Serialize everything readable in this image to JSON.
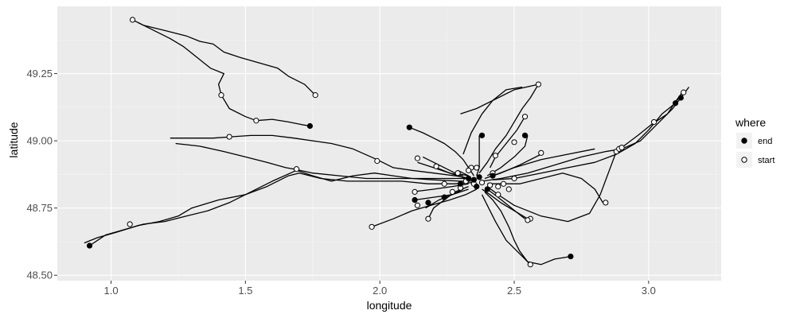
{
  "chart_data": {
    "type": "scatter",
    "title": "",
    "xlabel": "longitude",
    "ylabel": "latitude",
    "xlim": [
      0.8,
      3.27
    ],
    "ylim": [
      48.48,
      49.5
    ],
    "x_ticks": [
      {
        "value": 1.0,
        "label": "1.0"
      },
      {
        "value": 1.5,
        "label": "1.5"
      },
      {
        "value": 2.0,
        "label": "2.0"
      },
      {
        "value": 2.5,
        "label": "2.5"
      },
      {
        "value": 3.0,
        "label": "3.0"
      }
    ],
    "y_ticks": [
      {
        "value": 48.5,
        "label": "48.50"
      },
      {
        "value": 48.75,
        "label": "48.75"
      },
      {
        "value": 49.0,
        "label": "49.00"
      },
      {
        "value": 49.25,
        "label": "49.25"
      }
    ],
    "grid": true,
    "panel_background": "#ebebeb",
    "legend": {
      "title": "where",
      "position": "right",
      "entries": [
        {
          "label": "end",
          "marker": "filled-circle",
          "fill": "#000000"
        },
        {
          "label": "start",
          "marker": "open-circle",
          "fill": "#ffffff"
        }
      ]
    },
    "tracks": [
      [
        [
          1.08,
          49.45
        ],
        [
          1.12,
          49.43
        ],
        [
          1.2,
          49.41
        ],
        [
          1.28,
          49.39
        ],
        [
          1.33,
          49.37
        ],
        [
          1.38,
          49.36
        ],
        [
          1.42,
          49.33
        ],
        [
          1.48,
          49.31
        ],
        [
          1.55,
          49.29
        ],
        [
          1.62,
          49.27
        ],
        [
          1.66,
          49.24
        ],
        [
          1.72,
          49.21
        ],
        [
          1.76,
          49.17
        ]
      ],
      [
        [
          1.1,
          49.44
        ],
        [
          1.16,
          49.41
        ],
        [
          1.22,
          49.38
        ],
        [
          1.27,
          49.35
        ],
        [
          1.32,
          49.31
        ],
        [
          1.37,
          49.27
        ],
        [
          1.42,
          49.25
        ],
        [
          1.4,
          49.21
        ],
        [
          1.41,
          49.17
        ],
        [
          1.44,
          49.12
        ],
        [
          1.5,
          49.09
        ],
        [
          1.54,
          49.075
        ],
        [
          1.6,
          49.08
        ],
        [
          1.66,
          49.07
        ],
        [
          1.71,
          49.06
        ],
        [
          1.74,
          49.055
        ]
      ],
      [
        [
          1.22,
          49.01
        ],
        [
          1.3,
          49.01
        ],
        [
          1.38,
          49.01
        ],
        [
          1.45,
          49.015
        ],
        [
          1.52,
          49.02
        ],
        [
          1.6,
          49.02
        ],
        [
          1.68,
          49.01
        ],
        [
          1.75,
          49.0
        ],
        [
          1.82,
          48.99
        ],
        [
          1.9,
          48.97
        ],
        [
          1.99,
          48.93
        ],
        [
          2.05,
          48.9
        ],
        [
          2.12,
          48.89
        ],
        [
          2.2,
          48.88
        ],
        [
          2.28,
          48.87
        ],
        [
          2.34,
          48.86
        ]
      ],
      [
        [
          1.24,
          48.99
        ],
        [
          1.33,
          48.98
        ],
        [
          1.42,
          48.96
        ],
        [
          1.5,
          48.94
        ],
        [
          1.58,
          48.92
        ],
        [
          1.65,
          48.9
        ],
        [
          1.68,
          48.895
        ],
        [
          1.75,
          48.88
        ],
        [
          1.85,
          48.87
        ],
        [
          1.95,
          48.86
        ],
        [
          2.05,
          48.86
        ],
        [
          2.15,
          48.86
        ],
        [
          2.25,
          48.86
        ],
        [
          2.34,
          48.86
        ]
      ],
      [
        [
          0.92,
          48.61
        ],
        [
          0.98,
          48.65
        ],
        [
          1.05,
          48.67
        ],
        [
          1.12,
          48.69
        ],
        [
          1.2,
          48.7
        ],
        [
          1.28,
          48.72
        ],
        [
          1.36,
          48.74
        ],
        [
          1.44,
          48.77
        ],
        [
          1.52,
          48.81
        ],
        [
          1.6,
          48.85
        ],
        [
          1.69,
          48.89
        ],
        [
          1.75,
          48.87
        ],
        [
          1.82,
          48.85
        ],
        [
          1.9,
          48.87
        ],
        [
          1.98,
          48.88
        ],
        [
          2.05,
          48.87
        ],
        [
          2.12,
          48.86
        ],
        [
          2.2,
          48.855
        ],
        [
          2.3,
          48.85
        ],
        [
          2.35,
          48.85
        ]
      ],
      [
        [
          0.9,
          48.62
        ],
        [
          0.95,
          48.64
        ],
        [
          1.02,
          48.66
        ],
        [
          1.1,
          48.685
        ],
        [
          1.18,
          48.7
        ],
        [
          1.25,
          48.72
        ],
        [
          1.3,
          48.75
        ],
        [
          1.4,
          48.78
        ],
        [
          1.5,
          48.8
        ],
        [
          1.58,
          48.83
        ],
        [
          1.66,
          48.87
        ],
        [
          1.7,
          48.88
        ],
        [
          1.78,
          48.86
        ],
        [
          1.88,
          48.85
        ],
        [
          1.98,
          48.85
        ],
        [
          2.08,
          48.85
        ],
        [
          2.18,
          48.84
        ],
        [
          2.28,
          48.84
        ],
        [
          2.35,
          48.845
        ]
      ],
      [
        [
          2.11,
          49.05
        ],
        [
          2.16,
          49.03
        ],
        [
          2.2,
          49.01
        ],
        [
          2.24,
          48.99
        ],
        [
          2.28,
          48.96
        ],
        [
          2.31,
          48.93
        ],
        [
          2.33,
          48.9
        ],
        [
          2.35,
          48.87
        ]
      ],
      [
        [
          2.37,
          49.02
        ],
        [
          2.37,
          48.98
        ],
        [
          2.37,
          48.94
        ],
        [
          2.37,
          48.9
        ],
        [
          2.36,
          48.87
        ]
      ],
      [
        [
          2.31,
          48.95
        ],
        [
          2.34,
          49.03
        ],
        [
          2.38,
          49.1
        ],
        [
          2.42,
          49.15
        ],
        [
          2.47,
          49.19
        ],
        [
          2.53,
          49.2
        ]
      ],
      [
        [
          2.3,
          49.1
        ],
        [
          2.36,
          49.12
        ],
        [
          2.42,
          49.15
        ],
        [
          2.5,
          49.19
        ],
        [
          2.59,
          49.21
        ]
      ],
      [
        [
          2.59,
          49.21
        ],
        [
          2.56,
          49.16
        ],
        [
          2.53,
          49.12
        ],
        [
          2.5,
          49.07
        ],
        [
          2.47,
          49.02
        ],
        [
          2.43,
          48.97
        ],
        [
          2.4,
          48.92
        ],
        [
          2.37,
          48.88
        ]
      ],
      [
        [
          2.54,
          49.09
        ],
        [
          2.51,
          49.04
        ],
        [
          2.47,
          48.99
        ],
        [
          2.43,
          48.94
        ],
        [
          2.41,
          48.9
        ]
      ],
      [
        [
          2.55,
          49.02
        ],
        [
          2.54,
          48.98
        ],
        [
          2.5,
          48.94
        ],
        [
          2.45,
          48.9
        ],
        [
          2.4,
          48.87
        ]
      ],
      [
        [
          2.6,
          48.95
        ],
        [
          2.52,
          48.91
        ],
        [
          2.45,
          48.88
        ],
        [
          2.39,
          48.86
        ]
      ],
      [
        [
          2.8,
          48.97
        ],
        [
          2.7,
          48.95
        ],
        [
          2.6,
          48.93
        ],
        [
          2.5,
          48.9
        ],
        [
          2.42,
          48.87
        ]
      ],
      [
        [
          3.15,
          49.2
        ],
        [
          3.12,
          49.16
        ],
        [
          3.09,
          49.12
        ],
        [
          3.05,
          49.08
        ],
        [
          3.02,
          49.05
        ],
        [
          2.97,
          49.0
        ],
        [
          2.9,
          48.97
        ],
        [
          2.84,
          48.96
        ],
        [
          2.75,
          48.94
        ],
        [
          2.65,
          48.91
        ],
        [
          2.55,
          48.88
        ],
        [
          2.45,
          48.86
        ],
        [
          2.38,
          48.85
        ]
      ],
      [
        [
          3.13,
          49.19
        ],
        [
          3.1,
          49.14
        ],
        [
          3.05,
          49.1
        ],
        [
          3.0,
          49.04
        ],
        [
          2.95,
          48.99
        ],
        [
          2.88,
          48.95
        ],
        [
          2.8,
          48.92
        ],
        [
          2.7,
          48.9
        ],
        [
          2.6,
          48.88
        ],
        [
          2.5,
          48.86
        ],
        [
          2.42,
          48.855
        ]
      ],
      [
        [
          3.11,
          49.16
        ],
        [
          3.07,
          49.1
        ],
        [
          3.01,
          49.06
        ],
        [
          2.96,
          49.02
        ],
        [
          2.88,
          48.96
        ],
        [
          2.85,
          48.88
        ],
        [
          2.82,
          48.8
        ],
        [
          2.78,
          48.73
        ],
        [
          2.7,
          48.7
        ],
        [
          2.6,
          48.72
        ],
        [
          2.5,
          48.76
        ],
        [
          2.44,
          48.8
        ],
        [
          2.4,
          48.83
        ]
      ],
      [
        [
          2.83,
          48.77
        ],
        [
          2.8,
          48.82
        ],
        [
          2.75,
          48.86
        ],
        [
          2.68,
          48.88
        ],
        [
          2.6,
          48.86
        ],
        [
          2.52,
          48.84
        ],
        [
          2.45,
          48.84
        ],
        [
          2.4,
          48.84
        ]
      ],
      [
        [
          2.71,
          48.57
        ],
        [
          2.65,
          48.56
        ],
        [
          2.6,
          48.54
        ],
        [
          2.55,
          48.55
        ],
        [
          2.52,
          48.59
        ],
        [
          2.5,
          48.63
        ],
        [
          2.48,
          48.68
        ],
        [
          2.45,
          48.74
        ],
        [
          2.42,
          48.78
        ],
        [
          2.39,
          48.81
        ]
      ],
      [
        [
          2.56,
          48.54
        ],
        [
          2.52,
          48.58
        ],
        [
          2.47,
          48.63
        ],
        [
          2.43,
          48.7
        ],
        [
          2.4,
          48.76
        ],
        [
          2.38,
          48.8
        ]
      ],
      [
        [
          2.55,
          48.71
        ],
        [
          2.5,
          48.74
        ],
        [
          2.45,
          48.77
        ],
        [
          2.41,
          48.8
        ],
        [
          2.38,
          48.82
        ]
      ],
      [
        [
          2.54,
          48.71
        ],
        [
          2.49,
          48.75
        ],
        [
          2.44,
          48.79
        ],
        [
          2.4,
          48.82
        ]
      ],
      [
        [
          1.97,
          48.68
        ],
        [
          2.05,
          48.71
        ],
        [
          2.12,
          48.74
        ],
        [
          2.19,
          48.76
        ],
        [
          2.26,
          48.78
        ],
        [
          2.32,
          48.8
        ],
        [
          2.36,
          48.82
        ]
      ],
      [
        [
          2.13,
          48.78
        ],
        [
          2.2,
          48.79
        ],
        [
          2.27,
          48.8
        ],
        [
          2.33,
          48.82
        ]
      ],
      [
        [
          2.18,
          48.71
        ],
        [
          2.2,
          48.75
        ],
        [
          2.24,
          48.78
        ],
        [
          2.28,
          48.81
        ],
        [
          2.33,
          48.83
        ]
      ],
      [
        [
          2.17,
          48.75
        ],
        [
          2.22,
          48.78
        ],
        [
          2.27,
          48.8
        ],
        [
          2.31,
          48.82
        ]
      ],
      [
        [
          2.12,
          48.81
        ],
        [
          2.2,
          48.82
        ],
        [
          2.27,
          48.83
        ],
        [
          2.33,
          48.84
        ]
      ],
      [
        [
          2.14,
          48.92
        ],
        [
          2.2,
          48.9
        ],
        [
          2.26,
          48.88
        ],
        [
          2.32,
          48.86
        ]
      ],
      [
        [
          2.16,
          48.94
        ],
        [
          2.22,
          48.91
        ],
        [
          2.28,
          48.88
        ],
        [
          2.33,
          48.87
        ]
      ],
      [
        [
          2.21,
          48.9
        ],
        [
          2.26,
          48.88
        ],
        [
          2.31,
          48.87
        ]
      ],
      [
        [
          2.29,
          48.89
        ],
        [
          2.33,
          48.87
        ]
      ]
    ],
    "end_points": [
      [
        0.92,
        48.61
      ],
      [
        1.74,
        49.055
      ],
      [
        2.11,
        49.05
      ],
      [
        2.38,
        49.02
      ],
      [
        2.54,
        49.02
      ],
      [
        2.71,
        48.57
      ],
      [
        3.1,
        49.14
      ],
      [
        3.12,
        49.16
      ],
      [
        2.13,
        48.78
      ],
      [
        2.18,
        48.77
      ],
      [
        2.24,
        48.79
      ],
      [
        2.3,
        48.84
      ],
      [
        2.33,
        48.86
      ],
      [
        2.35,
        48.855
      ],
      [
        2.37,
        48.865
      ],
      [
        2.42,
        48.87
      ],
      [
        2.36,
        48.83
      ],
      [
        2.4,
        48.82
      ]
    ],
    "start_points": [
      [
        1.08,
        49.45
      ],
      [
        1.76,
        49.17
      ],
      [
        1.41,
        49.17
      ],
      [
        1.54,
        49.075
      ],
      [
        1.44,
        49.015
      ],
      [
        1.69,
        48.895
      ],
      [
        1.99,
        48.925
      ],
      [
        1.07,
        48.69
      ],
      [
        2.14,
        48.935
      ],
      [
        2.21,
        48.905
      ],
      [
        2.29,
        48.88
      ],
      [
        2.34,
        48.9
      ],
      [
        2.43,
        48.945
      ],
      [
        2.5,
        48.995
      ],
      [
        2.59,
        49.21
      ],
      [
        2.54,
        49.09
      ],
      [
        2.6,
        48.955
      ],
      [
        2.88,
        48.96
      ],
      [
        2.89,
        48.97
      ],
      [
        2.9,
        48.975
      ],
      [
        3.02,
        49.07
      ],
      [
        3.13,
        49.18
      ],
      [
        2.84,
        48.77
      ],
      [
        2.56,
        48.71
      ],
      [
        2.55,
        48.705
      ],
      [
        2.56,
        48.54
      ],
      [
        1.97,
        48.68
      ],
      [
        2.13,
        48.81
      ],
      [
        2.14,
        48.76
      ],
      [
        2.18,
        48.71
      ],
      [
        2.27,
        48.81
      ],
      [
        2.24,
        48.84
      ],
      [
        2.3,
        48.825
      ],
      [
        2.32,
        48.85
      ],
      [
        2.35,
        48.84
      ],
      [
        2.38,
        48.845
      ],
      [
        2.41,
        48.835
      ],
      [
        2.44,
        48.83
      ],
      [
        2.46,
        48.84
      ],
      [
        2.5,
        48.86
      ],
      [
        2.42,
        48.88
      ],
      [
        2.36,
        48.9
      ],
      [
        2.33,
        48.89
      ],
      [
        2.48,
        48.82
      ],
      [
        2.44,
        48.8
      ]
    ]
  }
}
